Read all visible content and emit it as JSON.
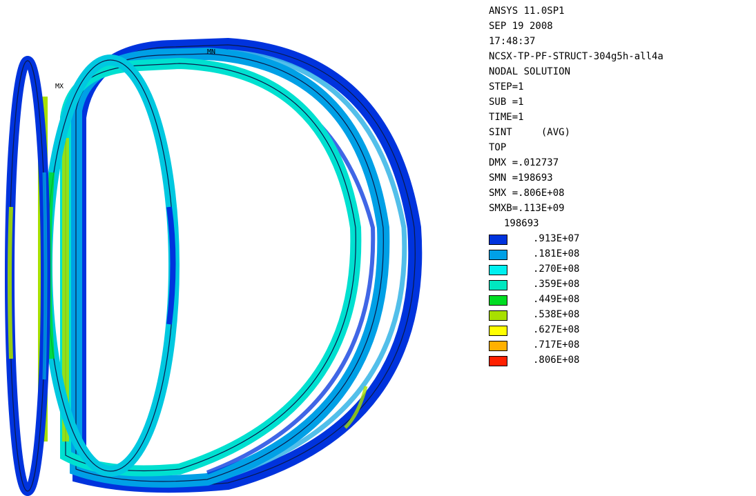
{
  "header": {
    "software": "ANSYS 11.0SP1",
    "date": "SEP 19 2008",
    "time": "17:48:37",
    "job_name": "NCSX-TP-PF-STRUCT-304g5h-all4a"
  },
  "solution": {
    "type": "NODAL SOLUTION",
    "step": "STEP=1",
    "substep": "SUB =1",
    "time": "TIME=1",
    "result_item": "SINT     (AVG)",
    "layer": "TOP",
    "dmx": "DMX =.012737",
    "smn": "SMN =198693",
    "smx": "SMX =.806E+08",
    "smxb": "SMXB=.113E+09"
  },
  "legend": {
    "min_label": "198693",
    "bands": [
      {
        "color": "#0033dd",
        "label": ".913E+07"
      },
      {
        "color": "#00a0e6",
        "label": ".181E+08"
      },
      {
        "color": "#00f0f0",
        "label": ".270E+08"
      },
      {
        "color": "#00e8c0",
        "label": ".359E+08"
      },
      {
        "color": "#00dd22",
        "label": ".449E+08"
      },
      {
        "color": "#a8e000",
        "label": ".538E+08"
      },
      {
        "color": "#ffff00",
        "label": ".627E+08"
      },
      {
        "color": "#ffb000",
        "label": ".717E+08"
      },
      {
        "color": "#ff2000",
        "label": ".806E+08"
      }
    ]
  },
  "model": {
    "max_marker": "MX",
    "min_marker": "MN"
  }
}
